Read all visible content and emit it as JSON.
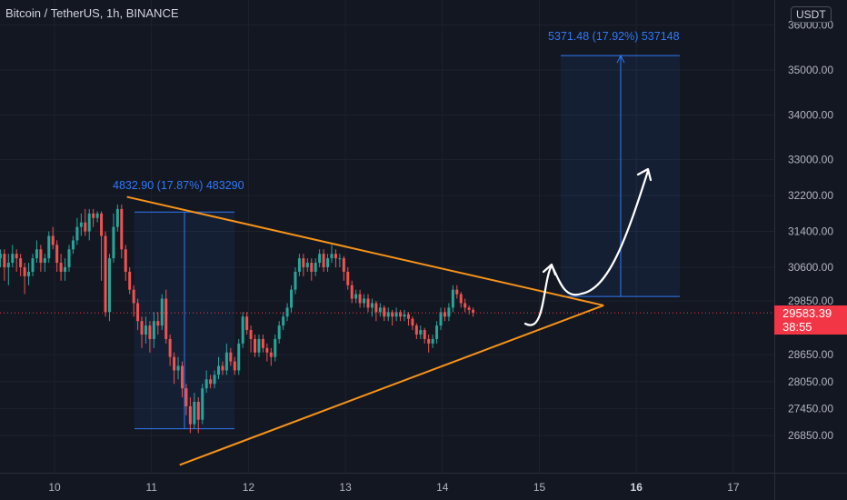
{
  "header": {
    "title": "Bitcoin / TetherUS, 1h, BINANCE",
    "currency_badge": "USDT"
  },
  "price_tag": {
    "price": "29583.39",
    "countdown": "38:55"
  },
  "measurements": [
    {
      "label": "4832.90 (17.87%) 483290"
    },
    {
      "label": "5371.48 (17.92%) 537148"
    }
  ],
  "colors": {
    "background": "#131722",
    "bull": "#26a69a",
    "bear": "#ef5350",
    "trendline": "#f7931a",
    "measure": "#3179f5",
    "arrow": "#ffffff",
    "price_tag": "#f23645"
  },
  "chart_data": {
    "type": "candlestick",
    "title": "Bitcoin / TetherUS, 1h, BINANCE",
    "y_axis_ticks": [
      36000,
      35000,
      34000,
      33000,
      32200,
      31400,
      30600,
      29850,
      28650,
      28050,
      27450,
      26850
    ],
    "x_axis_ticks": [
      "10",
      "11",
      "12",
      "13",
      "14",
      "15",
      "16",
      "17"
    ],
    "last_price": 29583.39,
    "bars_per_day": 24,
    "candles": [
      [
        30300,
        30100,
        30700,
        29900
      ],
      [
        30100,
        30500,
        30600,
        29950
      ],
      [
        30500,
        30300,
        30800,
        30200
      ],
      [
        30300,
        30800,
        30900,
        30100
      ],
      [
        30800,
        30500,
        31000,
        30400
      ],
      [
        30500,
        30900,
        31100,
        30400
      ],
      [
        30900,
        30400,
        31000,
        30300
      ],
      [
        30400,
        30200,
        30600,
        29500
      ],
      [
        30200,
        30600,
        30800,
        30100
      ],
      [
        30600,
        31000,
        31200,
        30500
      ],
      [
        31000,
        31600,
        31700,
        30900
      ],
      [
        31600,
        31200,
        31800,
        31100
      ],
      [
        31200,
        31700,
        32000,
        31100
      ],
      [
        31700,
        31300,
        31800,
        31100
      ],
      [
        31300,
        31600,
        31700,
        31000
      ],
      [
        31600,
        31500,
        31800,
        31200
      ],
      [
        31500,
        31000,
        31600,
        30900
      ],
      [
        31000,
        31400,
        31500,
        30800
      ],
      [
        31400,
        31700,
        31800,
        31300
      ],
      [
        31700,
        31200,
        31800,
        31100
      ],
      [
        31200,
        31300,
        31500,
        31000
      ],
      [
        31300,
        31100,
        31400,
        30900
      ],
      [
        31100,
        31400,
        31600,
        31000
      ],
      [
        31400,
        31200,
        31500,
        31000
      ],
      [
        31200,
        30800,
        31300,
        30700
      ],
      [
        30800,
        30900,
        31000,
        30600
      ],
      [
        30900,
        30600,
        31000,
        30300
      ],
      [
        30600,
        30700,
        30900,
        30200
      ],
      [
        30700,
        30900,
        31100,
        30600
      ],
      [
        30900,
        30800,
        31000,
        30500
      ],
      [
        30800,
        30600,
        30900,
        30400
      ],
      [
        30600,
        30400,
        30700,
        30000
      ],
      [
        30400,
        30500,
        30700,
        30200
      ],
      [
        30500,
        30800,
        30900,
        30400
      ],
      [
        30800,
        31000,
        31200,
        30700
      ],
      [
        31000,
        30700,
        31100,
        30500
      ],
      [
        30700,
        30800,
        30900,
        30500
      ],
      [
        30800,
        31300,
        31400,
        30700
      ],
      [
        31300,
        31100,
        31500,
        31000
      ],
      [
        31100,
        30700,
        31200,
        30500
      ],
      [
        30700,
        30500,
        30900,
        30300
      ],
      [
        30500,
        30600,
        30800,
        30300
      ],
      [
        30600,
        31000,
        31100,
        30500
      ],
      [
        31000,
        31200,
        31300,
        30900
      ],
      [
        31200,
        31500,
        31700,
        31100
      ],
      [
        31500,
        31600,
        31800,
        31300
      ],
      [
        31600,
        31400,
        31900,
        31300
      ],
      [
        31400,
        31800,
        31900,
        31200
      ],
      [
        31800,
        31700,
        31900,
        31500
      ],
      [
        31700,
        31800,
        31850,
        31600
      ],
      [
        31800,
        31300,
        31850,
        30300
      ],
      [
        31300,
        29600,
        31400,
        29500
      ],
      [
        29600,
        30800,
        30900,
        29400
      ],
      [
        30800,
        31500,
        31800,
        30700
      ],
      [
        31500,
        31900,
        32000,
        31400
      ],
      [
        31900,
        31000,
        32000,
        30800
      ],
      [
        31000,
        30500,
        31100,
        30300
      ],
      [
        30500,
        30100,
        30600,
        30000
      ],
      [
        30100,
        29800,
        30200,
        29500
      ],
      [
        29800,
        29400,
        29900,
        29200
      ],
      [
        29400,
        29100,
        29500,
        28800
      ],
      [
        29100,
        29300,
        29500,
        28900
      ],
      [
        29300,
        29000,
        29400,
        28700
      ],
      [
        29000,
        29400,
        29600,
        28800
      ],
      [
        29400,
        29300,
        29600,
        29100
      ],
      [
        29300,
        29900,
        30000,
        29200
      ],
      [
        29900,
        29000,
        30100,
        28900
      ],
      [
        29000,
        28600,
        29100,
        28400
      ],
      [
        28600,
        28300,
        28700,
        28000
      ],
      [
        28300,
        28400,
        28600,
        28100
      ],
      [
        28400,
        27900,
        28500,
        27700
      ],
      [
        27900,
        27500,
        28000,
        27300
      ],
      [
        27500,
        27100,
        27700,
        26900
      ],
      [
        27100,
        27600,
        27800,
        27000
      ],
      [
        27600,
        27200,
        27700,
        26900
      ],
      [
        27200,
        27900,
        28000,
        27100
      ],
      [
        27900,
        28100,
        28300,
        27800
      ],
      [
        28100,
        28000,
        28200,
        27900
      ],
      [
        28000,
        28200,
        28300,
        27900
      ],
      [
        28200,
        28400,
        28600,
        28100
      ],
      [
        28400,
        28300,
        28500,
        28200
      ],
      [
        28300,
        28700,
        28900,
        28200
      ],
      [
        28700,
        28500,
        28800,
        28400
      ],
      [
        28500,
        28300,
        28600,
        28200
      ],
      [
        28300,
        28900,
        29000,
        28200
      ],
      [
        28900,
        29500,
        29600,
        28800
      ],
      [
        29500,
        29200,
        29600,
        29100
      ],
      [
        29200,
        29000,
        29300,
        28700
      ],
      [
        29000,
        28700,
        29100,
        28600
      ],
      [
        28700,
        29000,
        29100,
        28600
      ],
      [
        29000,
        28800,
        29100,
        28700
      ],
      [
        28800,
        28700,
        28900,
        28500
      ],
      [
        28700,
        28600,
        28800,
        28400
      ],
      [
        28600,
        29000,
        29100,
        28500
      ],
      [
        29000,
        29300,
        29400,
        28900
      ],
      [
        29300,
        29500,
        29600,
        29200
      ],
      [
        29500,
        29700,
        29800,
        29400
      ],
      [
        29700,
        30100,
        30200,
        29600
      ],
      [
        30100,
        30500,
        30600,
        30000
      ],
      [
        30500,
        30800,
        30900,
        30400
      ],
      [
        30800,
        30600,
        30900,
        30400
      ],
      [
        30600,
        30700,
        30800,
        30500
      ],
      [
        30700,
        30500,
        30800,
        30300
      ],
      [
        30500,
        30700,
        30800,
        30400
      ],
      [
        30700,
        30900,
        31000,
        30600
      ],
      [
        30900,
        30600,
        31000,
        30500
      ],
      [
        30600,
        30800,
        30900,
        30500
      ],
      [
        30800,
        30900,
        31100,
        30700
      ],
      [
        30900,
        30800,
        31000,
        30600
      ],
      [
        30800,
        30800,
        30900,
        30600
      ],
      [
        30800,
        30500,
        30850,
        30300
      ],
      [
        30500,
        30200,
        30600,
        30100
      ],
      [
        30200,
        29900,
        30300,
        29800
      ],
      [
        29900,
        30000,
        30100,
        29800
      ],
      [
        30000,
        29800,
        30100,
        29700
      ],
      [
        29800,
        29900,
        30000,
        29700
      ],
      [
        29900,
        29700,
        30000,
        29600
      ],
      [
        29700,
        29800,
        29900,
        29500
      ],
      [
        29800,
        29600,
        29850,
        29400
      ],
      [
        29600,
        29700,
        29800,
        29500
      ],
      [
        29700,
        29500,
        29750,
        29400
      ],
      [
        29500,
        29600,
        29700,
        29400
      ],
      [
        29600,
        29500,
        29650,
        29300
      ],
      [
        29500,
        29600,
        29700,
        29400
      ],
      [
        29600,
        29500,
        29650,
        29400
      ],
      [
        29500,
        29550,
        29650,
        29400
      ],
      [
        29550,
        29450,
        29600,
        29300
      ],
      [
        29450,
        29300,
        29500,
        29200
      ],
      [
        29300,
        29100,
        29350,
        29000
      ],
      [
        29100,
        29200,
        29300,
        29000
      ],
      [
        29200,
        29000,
        29250,
        28900
      ],
      [
        29000,
        28900,
        29100,
        28700
      ],
      [
        28900,
        29000,
        29100,
        28800
      ],
      [
        29000,
        29300,
        29400,
        28900
      ],
      [
        29300,
        29600,
        29700,
        29200
      ],
      [
        29600,
        29500,
        29700,
        29400
      ],
      [
        29500,
        29700,
        29800,
        29400
      ],
      [
        29700,
        30100,
        30200,
        29600
      ],
      [
        30100,
        30000,
        30200,
        29900
      ],
      [
        30000,
        29800,
        30050,
        29700
      ],
      [
        29800,
        29700,
        29900,
        29600
      ],
      [
        29700,
        29650,
        29750,
        29550
      ],
      [
        29650,
        29583,
        29700,
        29500
      ]
    ],
    "triangle": {
      "upper": {
        "from": [
          "11",
          32150
        ],
        "to": [
          "15.7",
          29750
        ]
      },
      "lower": {
        "from": [
          "11.3",
          26800
        ],
        "to": [
          "15.7",
          29750
        ]
      }
    },
    "measures": [
      {
        "label": "4832.90 (17.87%) 483290",
        "low": 27000,
        "high": 31833
      },
      {
        "label": "5371.48 (17.92%) 537148",
        "low": 29950,
        "high": 35321
      }
    ],
    "projected_path": [
      "bounce to ~30700",
      "dip to ~30000",
      "rally toward ~32900"
    ]
  }
}
